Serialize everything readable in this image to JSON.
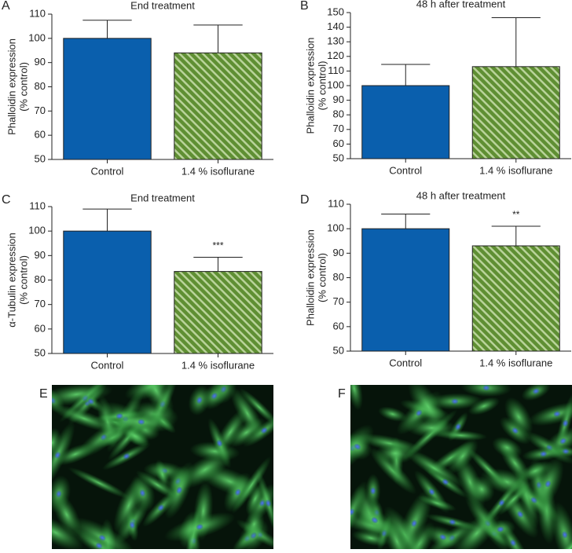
{
  "chart_data": [
    {
      "type": "bar",
      "panel": "A",
      "title": "End treatment",
      "y_label": [
        "Phalloidin expression",
        "(% control)"
      ],
      "categories": [
        "Control",
        "1.4 % isoflurane"
      ],
      "values": [
        100,
        94
      ],
      "errors": [
        7.5,
        11.5
      ],
      "colors": [
        "#0a5fad",
        "#6b9a3c"
      ],
      "hatch": [
        false,
        true
      ],
      "ylim": [
        50,
        110
      ],
      "yticks": [
        50,
        60,
        70,
        80,
        90,
        100,
        110
      ]
    },
    {
      "type": "bar",
      "panel": "B",
      "title": "48 h after treatment",
      "y_label": [
        "Phalloidin expression",
        "(% control)"
      ],
      "categories": [
        "Control",
        "1.4 % isoflurane"
      ],
      "values": [
        100,
        113
      ],
      "errors": [
        14.5,
        33.5
      ],
      "colors": [
        "#0a5fad",
        "#6b9a3c"
      ],
      "hatch": [
        false,
        true
      ],
      "ylim": [
        50,
        150
      ],
      "yticks": [
        50,
        60,
        70,
        80,
        90,
        100,
        110,
        120,
        130,
        140,
        150
      ]
    },
    {
      "type": "bar",
      "panel": "C",
      "title": "End treatment",
      "y_label": [
        "α-Tubulin expression",
        "(% control)"
      ],
      "categories": [
        "Control",
        "1.4 % isoflurane"
      ],
      "values": [
        100,
        83.5
      ],
      "errors": [
        9,
        5.8
      ],
      "annotations": [
        null,
        "***"
      ],
      "colors": [
        "#0a5fad",
        "#6b9a3c"
      ],
      "hatch": [
        false,
        true
      ],
      "ylim": [
        50,
        110
      ],
      "yticks": [
        50,
        60,
        70,
        80,
        90,
        100,
        110
      ]
    },
    {
      "type": "bar",
      "panel": "D",
      "title": "48 h after treatment",
      "y_label": [
        "Phalloidin expression",
        "(% control)"
      ],
      "categories": [
        "Control",
        "1.4 % isoflurane"
      ],
      "values": [
        100,
        93
      ],
      "errors": [
        6,
        8
      ],
      "annotations": [
        null,
        "**"
      ],
      "colors": [
        "#0a5fad",
        "#6b9a3c"
      ],
      "hatch": [
        false,
        true
      ],
      "ylim": [
        50,
        110
      ],
      "yticks": [
        50,
        60,
        70,
        80,
        90,
        100,
        110
      ]
    }
  ],
  "images": [
    {
      "panel": "E"
    },
    {
      "panel": "F"
    }
  ]
}
